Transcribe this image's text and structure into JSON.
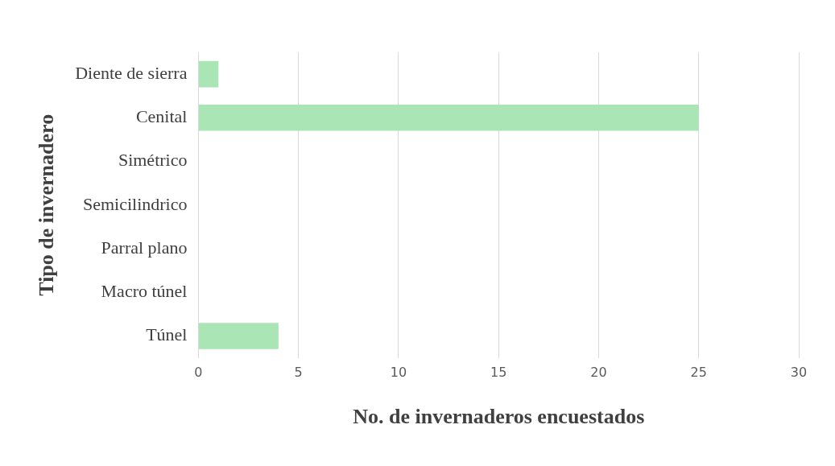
{
  "chart_data": {
    "type": "bar",
    "orientation": "horizontal",
    "categories": [
      "Diente de sierra",
      "Cenital",
      "Simétrico",
      "Semicilindrico",
      "Parral plano",
      "Macro túnel",
      "Túnel"
    ],
    "values": [
      1,
      25,
      0,
      0,
      0,
      0,
      4
    ],
    "color": "#a9e5b5",
    "xlim": [
      0,
      30
    ],
    "xticks": [
      0,
      5,
      10,
      15,
      20,
      25,
      30
    ],
    "grid": "x",
    "legend": false,
    "xlabel": "No. de invernaderos encuestados",
    "ylabel": "Tipo de invernadero"
  }
}
